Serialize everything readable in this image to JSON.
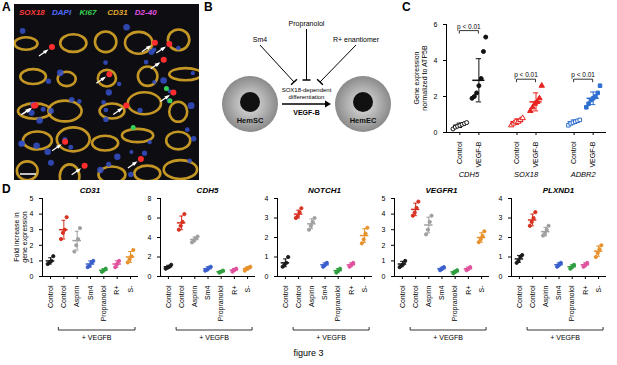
{
  "caption": "figure 3",
  "image_panel": {
    "label": "A",
    "stains": [
      {
        "label": "SOX18",
        "color": "#ff3b3b"
      },
      {
        "label": "DAPI",
        "color": "#4f6bff"
      },
      {
        "label": "Ki67",
        "color": "#39d353"
      },
      {
        "label": "CD31",
        "color": "#e0a82e"
      },
      {
        "label": "D2-40",
        "color": "#e052e0"
      }
    ]
  },
  "diagram_panel": {
    "label": "B",
    "nodes": [
      {
        "label": "HemSC"
      },
      {
        "label": "HemEC"
      }
    ],
    "edge": {
      "label": "SOX18-dependent differentiation",
      "stimulus": "VEGF-B"
    },
    "inhibitors": [
      "Sm4",
      "Propranolol",
      "R+ enantiomer"
    ]
  },
  "chart_data": [
    {
      "type": "dot",
      "panel": "C",
      "y_label": "Gene expression normalized to ATP5B",
      "ylim": [
        0,
        6
      ],
      "yticks": [
        0,
        2,
        4,
        6
      ],
      "groups": [
        {
          "name": "CDH5",
          "p_label": "p < 0.01",
          "series": [
            {
              "name": "Control",
              "color": "#111111",
              "marker": "open-circle",
              "points": [
                0.2,
                0.3,
                0.35,
                0.4,
                0.45,
                0.5,
                0.55
              ],
              "mean": 0.4,
              "sd": 0.12
            },
            {
              "name": "VEGF-B",
              "color": "#111111",
              "marker": "circle",
              "points": [
                1.9,
                2.0,
                2.2,
                2.6,
                3.0,
                4.5,
                5.3
              ],
              "mean": 2.9,
              "sd": 1.2
            }
          ]
        },
        {
          "name": "SOX18",
          "p_label": "p < 0.01",
          "series": [
            {
              "name": "Control",
              "color": "#e8231f",
              "marker": "open-triangle",
              "points": [
                0.4,
                0.5,
                0.6,
                0.6,
                0.7,
                0.8
              ],
              "mean": 0.6,
              "sd": 0.15
            },
            {
              "name": "VEGF-B",
              "color": "#e8231f",
              "marker": "triangle",
              "points": [
                1.2,
                1.4,
                1.6,
                1.7,
                1.9,
                2.6
              ],
              "mean": 1.7,
              "sd": 0.5
            }
          ]
        },
        {
          "name": "ADBR2",
          "p_label": "p < 0.01",
          "series": [
            {
              "name": "Control",
              "color": "#2f6fd0",
              "marker": "open-square",
              "points": [
                0.4,
                0.5,
                0.55,
                0.6,
                0.65,
                0.7
              ],
              "mean": 0.6,
              "sd": 0.1
            },
            {
              "name": "VEGF-B",
              "color": "#2f6fd0",
              "marker": "square",
              "points": [
                1.4,
                1.6,
                1.8,
                1.9,
                2.0,
                2.2,
                2.6
              ],
              "mean": 1.9,
              "sd": 0.35
            }
          ]
        }
      ]
    },
    {
      "type": "dot",
      "panel": "D",
      "title": "CD31",
      "y_label": "Fold increase in gene expression",
      "marker": "circle",
      "categories": [
        "Control",
        "Control",
        "Aspirin",
        "Sm4",
        "Propranolol",
        "R+",
        "S-"
      ],
      "group_label": "+ VEGFB",
      "colors": [
        "#1a1a1a",
        "#d7301f",
        "#a0a0a0",
        "#3a5fcd",
        "#2e9e3e",
        "#e0529c",
        "#e8912a"
      ],
      "ylim": [
        0,
        5
      ],
      "yticks": [
        0,
        1,
        2,
        3,
        4,
        5
      ],
      "points": [
        [
          0.8,
          0.9,
          1.0,
          1.3
        ],
        [
          2.4,
          2.8,
          3.0,
          3.8
        ],
        [
          1.6,
          2.0,
          2.4,
          3.1
        ],
        [
          0.6,
          0.7,
          0.9,
          1.0
        ],
        [
          0.3,
          0.4,
          0.5
        ],
        [
          0.6,
          0.8,
          1.0
        ],
        [
          0.9,
          1.1,
          1.3,
          1.7
        ]
      ],
      "means": [
        1.0,
        3.0,
        2.3,
        0.8,
        0.4,
        0.8,
        1.25
      ],
      "sd": [
        0.2,
        0.6,
        0.6,
        0.2,
        0.1,
        0.2,
        0.35
      ]
    },
    {
      "type": "dot",
      "panel": "D",
      "title": "CDH5",
      "marker": "circle",
      "categories": [
        "Control",
        "Control",
        "Aspirin",
        "Sm4",
        "Propranolol",
        "R+",
        "S-"
      ],
      "group_label": "+ VEGFB",
      "colors": [
        "#1a1a1a",
        "#d7301f",
        "#a0a0a0",
        "#3a5fcd",
        "#2e9e3e",
        "#e0529c",
        "#e8912a"
      ],
      "ylim": [
        0,
        8
      ],
      "yticks": [
        0,
        2,
        4,
        6,
        8
      ],
      "points": [
        [
          0.8,
          0.9,
          1.0,
          1.2
        ],
        [
          4.8,
          5.2,
          5.6,
          6.4
        ],
        [
          3.5,
          3.7,
          3.9,
          4.1
        ],
        [
          0.6,
          0.7,
          0.9,
          1.0
        ],
        [
          0.4,
          0.5,
          0.6
        ],
        [
          0.5,
          0.7,
          0.8
        ],
        [
          0.6,
          0.8,
          0.9,
          1.0
        ]
      ],
      "means": [
        1.0,
        5.5,
        3.8,
        0.8,
        0.5,
        0.67,
        0.82
      ],
      "sd": [
        0.15,
        0.7,
        0.25,
        0.2,
        0.1,
        0.15,
        0.17
      ]
    },
    {
      "type": "dot",
      "panel": "D",
      "title": "NOTCH1",
      "marker": "circle",
      "categories": [
        "Control",
        "Control",
        "Aspirin",
        "Sm4",
        "Propranolol",
        "R+",
        "S-"
      ],
      "group_label": "+ VEGFB",
      "colors": [
        "#1a1a1a",
        "#d7301f",
        "#a0a0a0",
        "#3a5fcd",
        "#2e9e3e",
        "#e0529c",
        "#e8912a"
      ],
      "ylim": [
        0,
        4
      ],
      "yticks": [
        0,
        1,
        2,
        3,
        4
      ],
      "points": [
        [
          0.5,
          0.6,
          0.7,
          1.0
        ],
        [
          3.0,
          3.1,
          3.3,
          3.5
        ],
        [
          2.4,
          2.6,
          2.8,
          3.0
        ],
        [
          0.5,
          0.6,
          0.7
        ],
        [
          0.2,
          0.3,
          0.4
        ],
        [
          0.5,
          0.6,
          0.7
        ],
        [
          1.7,
          1.9,
          2.2,
          2.5
        ]
      ],
      "means": [
        0.7,
        3.2,
        2.7,
        0.6,
        0.3,
        0.6,
        2.1
      ],
      "sd": [
        0.2,
        0.2,
        0.25,
        0.1,
        0.1,
        0.1,
        0.35
      ]
    },
    {
      "type": "dot",
      "panel": "D",
      "title": "VEGFR1",
      "marker": "circle",
      "categories": [
        "Control",
        "Control",
        "Aspirin",
        "Sm4",
        "Propranolol",
        "R+",
        "S-"
      ],
      "group_label": "+ VEGFB",
      "colors": [
        "#1a1a1a",
        "#d7301f",
        "#a0a0a0",
        "#3a5fcd",
        "#2e9e3e",
        "#e0529c",
        "#e8912a"
      ],
      "ylim": [
        0,
        5
      ],
      "yticks": [
        0,
        1,
        2,
        3,
        4,
        5
      ],
      "points": [
        [
          0.6,
          0.7,
          0.8,
          1.0
        ],
        [
          3.9,
          4.1,
          4.4,
          4.8
        ],
        [
          2.7,
          3.0,
          3.5,
          3.9
        ],
        [
          0.4,
          0.5,
          0.6
        ],
        [
          0.2,
          0.3,
          0.4
        ],
        [
          0.4,
          0.5,
          0.6
        ],
        [
          2.2,
          2.4,
          2.6,
          2.9
        ]
      ],
      "means": [
        0.8,
        4.3,
        3.3,
        0.5,
        0.3,
        0.5,
        2.5
      ],
      "sd": [
        0.17,
        0.4,
        0.5,
        0.1,
        0.1,
        0.1,
        0.3
      ]
    },
    {
      "type": "dot",
      "panel": "D",
      "title": "PLXND1",
      "marker": "circle",
      "categories": [
        "Control",
        "Control",
        "Aspirin",
        "Sm4",
        "Propranolol",
        "R+",
        "S-"
      ],
      "group_label": "+ VEGFB",
      "colors": [
        "#1a1a1a",
        "#d7301f",
        "#a0a0a0",
        "#3a5fcd",
        "#2e9e3e",
        "#e0529c",
        "#e8912a"
      ],
      "ylim": [
        0,
        4
      ],
      "yticks": [
        0,
        1,
        2,
        3,
        4
      ],
      "points": [
        [
          0.7,
          0.8,
          1.0,
          1.1
        ],
        [
          2.6,
          2.8,
          3.0,
          3.3
        ],
        [
          2.1,
          2.2,
          2.4,
          2.6
        ],
        [
          0.5,
          0.6,
          0.7
        ],
        [
          0.4,
          0.5,
          0.6
        ],
        [
          0.5,
          0.6,
          0.7
        ],
        [
          1.0,
          1.2,
          1.4,
          1.6
        ]
      ],
      "means": [
        0.9,
        2.9,
        2.3,
        0.6,
        0.5,
        0.6,
        1.3
      ],
      "sd": [
        0.18,
        0.3,
        0.22,
        0.1,
        0.1,
        0.1,
        0.26
      ]
    }
  ]
}
